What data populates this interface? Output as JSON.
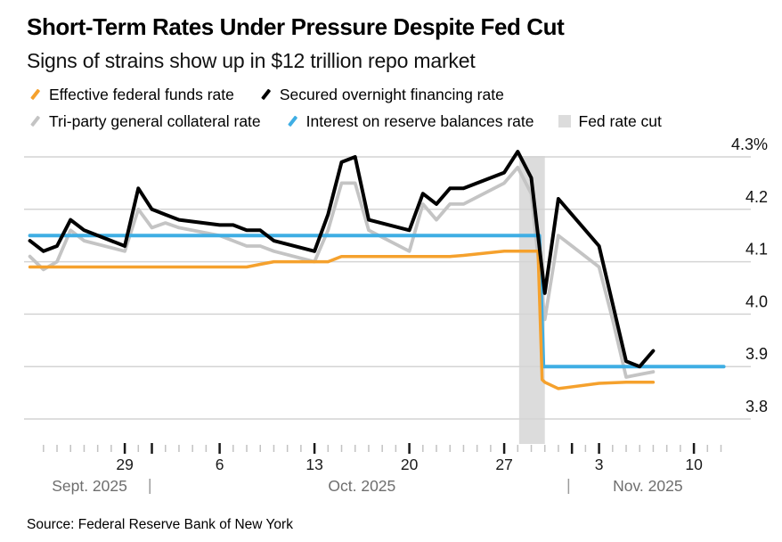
{
  "header": {
    "title": "Short-Term Rates Under Pressure Despite Fed Cut",
    "subtitle": "Signs of strains show up in $12 trillion repo market"
  },
  "legend": {
    "items": [
      {
        "label": "Effective federal funds rate",
        "marker": "slash",
        "color": "#F5A12D"
      },
      {
        "label": "Secured overnight financing rate",
        "marker": "slash",
        "color": "#000000"
      },
      {
        "label": "Tri-party general collateral rate",
        "marker": "slash",
        "color": "#C4C4C4"
      },
      {
        "label": "Interest on reserve balances rate",
        "marker": "slash",
        "color": "#3FAEE4"
      },
      {
        "label": "Fed rate cut",
        "marker": "square",
        "color": "#DCDCDC"
      }
    ]
  },
  "chart_data": {
    "type": "line",
    "title": "Short-Term Rates Under Pressure Despite Fed Cut",
    "x_unit": "days since 2025-09-22",
    "ylim": [
      3.8,
      4.3
    ],
    "grid": "horizontal",
    "y_axis": {
      "side": "right",
      "ticks": [
        {
          "value": 4.3,
          "label": "4.3%"
        },
        {
          "value": 4.2,
          "label": "4.2"
        },
        {
          "value": 4.1,
          "label": "4.1"
        },
        {
          "value": 4.0,
          "label": "4.0"
        },
        {
          "value": 3.9,
          "label": "3.9"
        },
        {
          "value": 3.8,
          "label": "3.8"
        }
      ]
    },
    "x_axis": {
      "ticks": [
        {
          "day": 7,
          "label": "29"
        },
        {
          "day": 14,
          "label": "6"
        },
        {
          "day": 21,
          "label": "13"
        },
        {
          "day": 28,
          "label": "20"
        },
        {
          "day": 35,
          "label": "27"
        },
        {
          "day": 42,
          "label": "3"
        },
        {
          "day": 49,
          "label": "10"
        }
      ],
      "major_tick_days": [
        7,
        9,
        14,
        21,
        28,
        35,
        40,
        42,
        49
      ],
      "minor_tick_day_range": [
        1,
        51
      ],
      "months": [
        {
          "text": "Sept. 2025",
          "day": 4.4
        },
        {
          "text": "Oct. 2025",
          "day": 24.5
        },
        {
          "text": "Nov. 2025",
          "day": 45.6
        }
      ],
      "separator_days": [
        8.85,
        39.75
      ]
    },
    "band": {
      "label": "Fed rate cut",
      "day_start": 36.1,
      "day_end": 38.0,
      "color": "#DCDCDC"
    },
    "series": [
      {
        "id": "effr",
        "name": "Effective federal funds rate",
        "color": "#F5A12D",
        "width": 3.5,
        "points": [
          [
            0,
            4.09
          ],
          [
            4,
            4.09
          ],
          [
            7,
            4.09
          ],
          [
            11,
            4.09
          ],
          [
            14,
            4.09
          ],
          [
            16,
            4.09
          ],
          [
            17,
            4.095
          ],
          [
            18,
            4.1
          ],
          [
            21,
            4.1
          ],
          [
            22,
            4.1
          ],
          [
            23,
            4.11
          ],
          [
            25,
            4.11
          ],
          [
            28,
            4.11
          ],
          [
            31,
            4.11
          ],
          [
            32,
            4.112
          ],
          [
            35,
            4.12
          ],
          [
            36,
            4.12
          ],
          [
            37,
            4.12
          ],
          [
            37.5,
            4.12
          ],
          [
            37.8,
            3.875
          ],
          [
            38,
            3.87
          ],
          [
            39,
            3.858
          ],
          [
            42,
            3.868
          ],
          [
            44,
            3.87
          ],
          [
            46,
            3.87
          ]
        ]
      },
      {
        "id": "sofr",
        "name": "Secured overnight financing rate",
        "color": "#000000",
        "width": 4,
        "points": [
          [
            0,
            4.14
          ],
          [
            1,
            4.12
          ],
          [
            2,
            4.13
          ],
          [
            3,
            4.18
          ],
          [
            4,
            4.16
          ],
          [
            7,
            4.13
          ],
          [
            8,
            4.24
          ],
          [
            9,
            4.2
          ],
          [
            10,
            4.19
          ],
          [
            11,
            4.18
          ],
          [
            14,
            4.17
          ],
          [
            15,
            4.17
          ],
          [
            16,
            4.16
          ],
          [
            17,
            4.16
          ],
          [
            18,
            4.14
          ],
          [
            21,
            4.12
          ],
          [
            22,
            4.19
          ],
          [
            23,
            4.29
          ],
          [
            24,
            4.3
          ],
          [
            25,
            4.18
          ],
          [
            28,
            4.16
          ],
          [
            29,
            4.23
          ],
          [
            30,
            4.21
          ],
          [
            31,
            4.24
          ],
          [
            32,
            4.24
          ],
          [
            35,
            4.27
          ],
          [
            36,
            4.31
          ],
          [
            37,
            4.26
          ],
          [
            38,
            4.04
          ],
          [
            39,
            4.22
          ],
          [
            42,
            4.13
          ],
          [
            43,
            4.02
          ],
          [
            44,
            3.91
          ],
          [
            45,
            3.9
          ],
          [
            46,
            3.93
          ]
        ]
      },
      {
        "id": "tgcr",
        "name": "Tri-party general collateral rate",
        "color": "#C4C4C4",
        "width": 3.8,
        "points": [
          [
            0,
            4.11
          ],
          [
            1,
            4.085
          ],
          [
            2,
            4.1
          ],
          [
            3,
            4.16
          ],
          [
            4,
            4.14
          ],
          [
            7,
            4.12
          ],
          [
            8,
            4.2
          ],
          [
            9,
            4.165
          ],
          [
            10,
            4.174
          ],
          [
            11,
            4.165
          ],
          [
            14,
            4.15
          ],
          [
            15,
            4.14
          ],
          [
            16,
            4.13
          ],
          [
            17,
            4.13
          ],
          [
            18,
            4.12
          ],
          [
            21,
            4.1
          ],
          [
            22,
            4.16
          ],
          [
            23,
            4.25
          ],
          [
            24,
            4.25
          ],
          [
            25,
            4.16
          ],
          [
            28,
            4.12
          ],
          [
            29,
            4.21
          ],
          [
            30,
            4.18
          ],
          [
            31,
            4.21
          ],
          [
            32,
            4.21
          ],
          [
            35,
            4.25
          ],
          [
            36,
            4.28
          ],
          [
            37,
            4.23
          ],
          [
            38,
            3.99
          ],
          [
            39,
            4.15
          ],
          [
            42,
            4.09
          ],
          [
            43,
            3.99
          ],
          [
            44,
            3.88
          ],
          [
            45,
            3.885
          ],
          [
            46,
            3.89
          ]
        ]
      },
      {
        "id": "iorb",
        "name": "Interest on reserve balances rate",
        "color": "#3FAEE4",
        "width": 4,
        "points": [
          [
            0,
            4.15
          ],
          [
            37.6,
            4.15
          ],
          [
            37.9,
            3.9
          ],
          [
            51.2,
            3.9
          ]
        ]
      }
    ],
    "legend_position": "top",
    "source_note": "Source: Federal Reserve Bank of New York"
  },
  "footer": {
    "source": "Source: Federal Reserve Bank of New York"
  }
}
